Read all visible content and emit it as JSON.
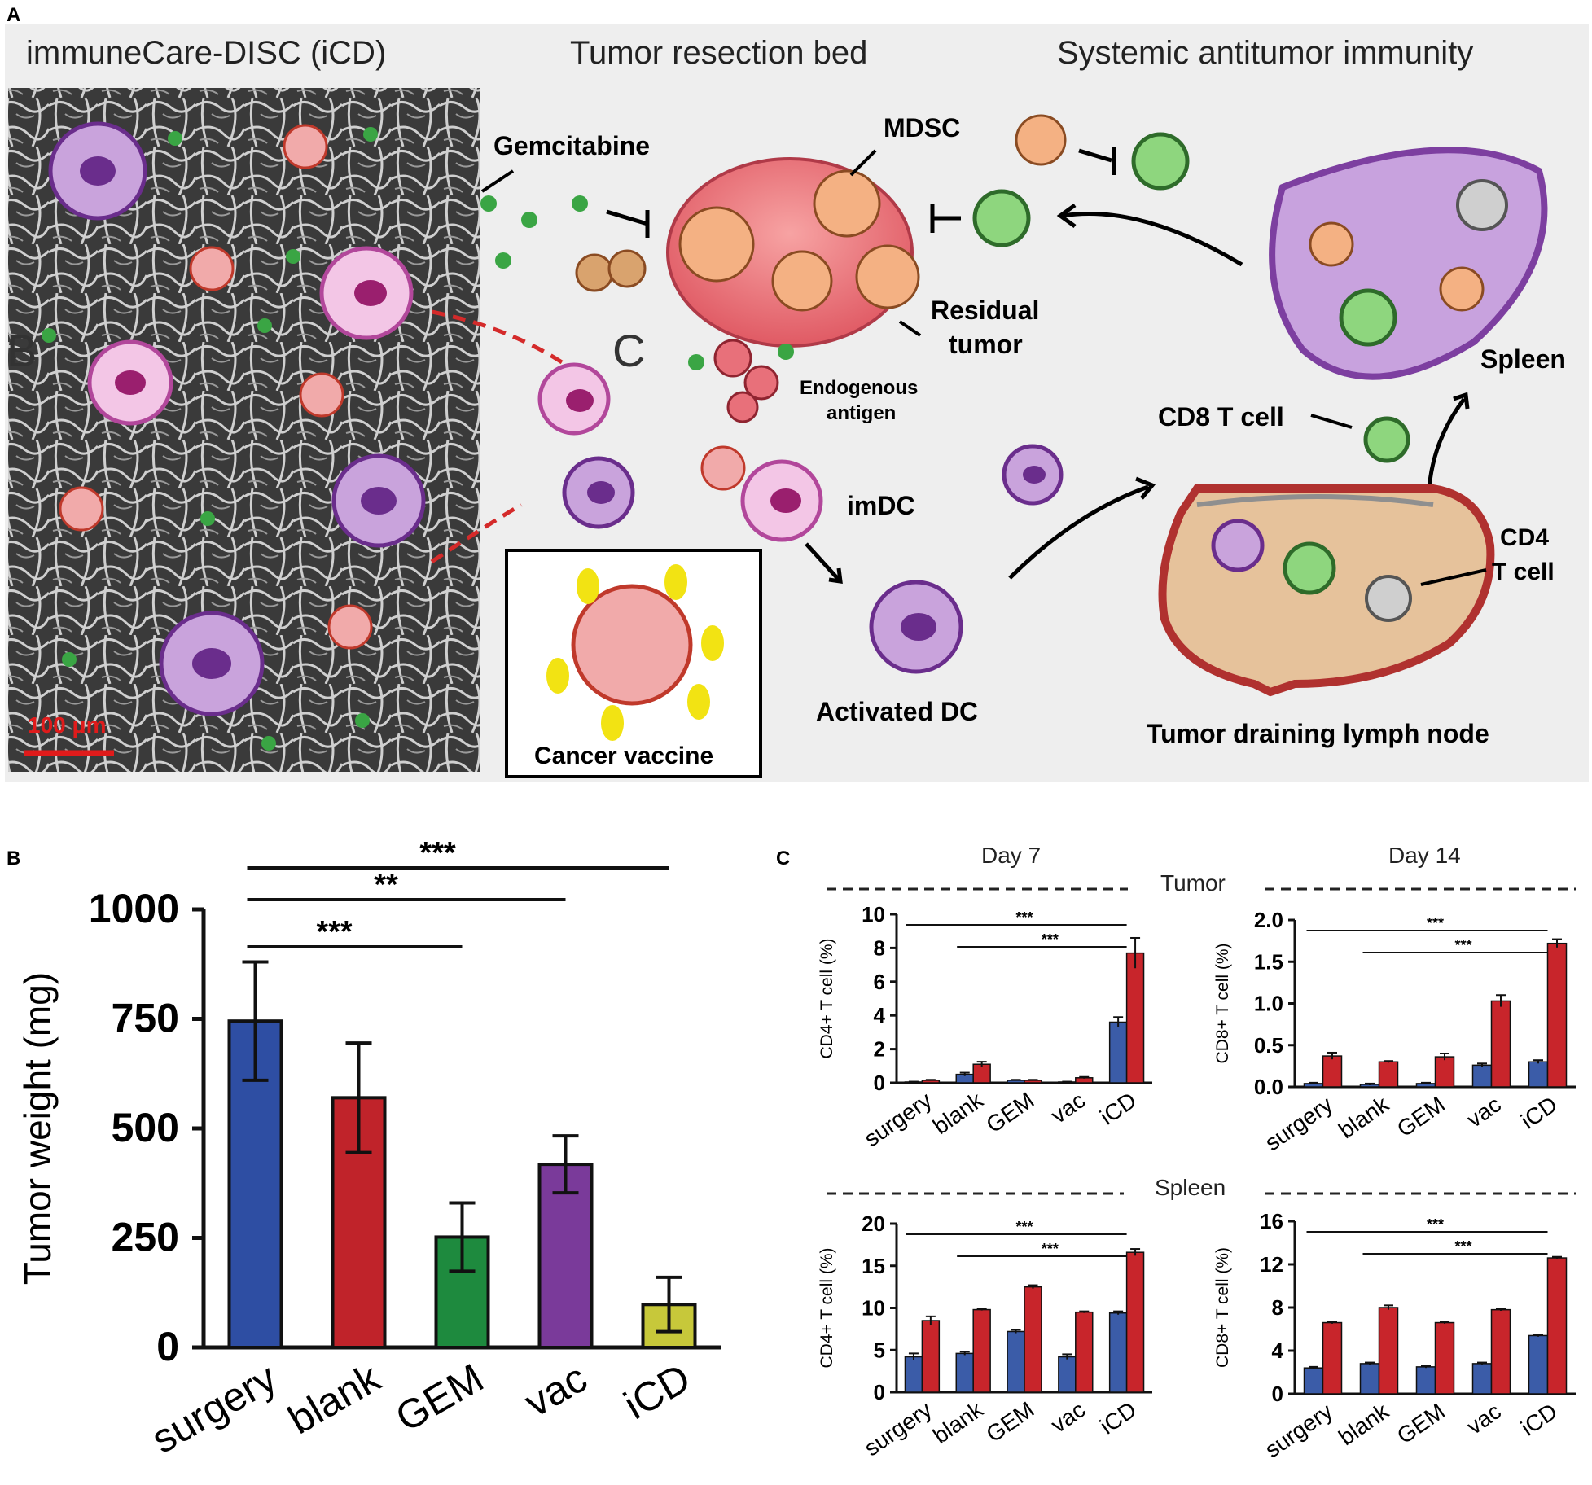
{
  "panel_a": {
    "letter": "A",
    "headers": [
      "immuneCare-DISC (iCD)",
      "Tumor resection bed",
      "Systemic antitumor immunity"
    ],
    "scale_bar": "100 μm",
    "stray_letters": [
      "B",
      "C"
    ],
    "labels": {
      "gemcitabine": "Gemcitabine",
      "mdsc": "MDSC",
      "residual_tumor_1": "Residual",
      "residual_tumor_2": "tumor",
      "endogenous_antigen_1": "Endogenous",
      "endogenous_antigen_2": "antigen",
      "imdc": "imDC",
      "activated_dc": "Activated DC",
      "cancer_vaccine": "Cancer vaccine",
      "spleen": "Spleen",
      "cd8_t_cell": "CD8 T cell",
      "cd4_1": "CD4",
      "cd4_2": "T cell",
      "lymph_node": "Tumor draining lymph node"
    },
    "colors": {
      "dc_purple": "#8e44ad",
      "imdc_pink": "#e8a0d8",
      "t_cell_green": "#7ccf6a",
      "tumor_red": "#e8707a",
      "mdsc_orange": "#f4b183",
      "lymph_node": "#e8c39e",
      "spleen": "#b98ad0",
      "arrow_red": "#d42a2a"
    }
  },
  "panel_b": {
    "letter": "B",
    "chart_data": {
      "type": "bar",
      "title": "",
      "xlabel": "",
      "ylabel": "Tumor weight (mg)",
      "ylim": [
        0,
        1000
      ],
      "yticks": [
        0,
        250,
        500,
        750,
        1000
      ],
      "categories": [
        "surgery",
        "blank",
        "GEM",
        "vac",
        "iCD"
      ],
      "values": [
        745,
        570,
        252,
        418,
        98
      ],
      "errors": [
        135,
        125,
        78,
        65,
        62
      ],
      "colors": [
        "#2e4ea3",
        "#c0232a",
        "#1e8a3e",
        "#7a3a9a",
        "#c7c83a"
      ],
      "significance": [
        {
          "from": "surgery",
          "to": "GEM",
          "label": "***"
        },
        {
          "from": "surgery",
          "to": "vac",
          "label": "**"
        },
        {
          "from": "surgery",
          "to": "iCD",
          "label": "***"
        }
      ]
    }
  },
  "panel_c": {
    "letter": "C",
    "col_titles": [
      "Day 7",
      "Day 14"
    ],
    "row_titles": [
      "Tumor",
      "Spleen"
    ],
    "chart_data": [
      {
        "type": "bar",
        "panel": "Day 7 Tumor",
        "ylabel": "CD4+ T cell (%)",
        "ylim": [
          0,
          10
        ],
        "yticks": [
          0,
          2,
          4,
          6,
          8,
          10
        ],
        "categories": [
          "surgery",
          "blank",
          "GEM",
          "vac",
          "iCD"
        ],
        "series": [
          {
            "values": [
              0.05,
              0.5,
              0.15,
              0.05,
              3.6
            ],
            "errors": [
              0.02,
              0.1,
              0.03,
              0.02,
              0.3
            ],
            "color": "#3b5ca8"
          },
          {
            "values": [
              0.15,
              1.1,
              0.15,
              0.3,
              7.7
            ],
            "errors": [
              0.03,
              0.15,
              0.03,
              0.05,
              0.9
            ],
            "color": "#c8252b"
          }
        ],
        "significance": [
          {
            "from": "surgery",
            "to": "iCD",
            "label": "***"
          },
          {
            "from": "blank",
            "to": "iCD",
            "label": "***"
          }
        ]
      },
      {
        "type": "bar",
        "panel": "Day 14 Tumor",
        "ylabel": "CD8+ T cell (%)",
        "ylim": [
          0,
          2.0
        ],
        "yticks": [
          0.0,
          0.5,
          1.0,
          1.5,
          2.0
        ],
        "categories": [
          "surgery",
          "blank",
          "GEM",
          "vac",
          "iCD"
        ],
        "series": [
          {
            "values": [
              0.04,
              0.03,
              0.04,
              0.26,
              0.3
            ],
            "errors": [
              0.01,
              0.01,
              0.01,
              0.02,
              0.02
            ],
            "color": "#3b5ca8"
          },
          {
            "values": [
              0.37,
              0.3,
              0.36,
              1.03,
              1.72
            ],
            "errors": [
              0.04,
              0.01,
              0.04,
              0.07,
              0.05
            ],
            "color": "#c8252b"
          }
        ],
        "significance": [
          {
            "from": "surgery",
            "to": "iCD",
            "label": "***"
          },
          {
            "from": "blank",
            "to": "iCD",
            "label": "***"
          }
        ]
      },
      {
        "type": "bar",
        "panel": "Day 7 Spleen",
        "ylabel": "CD4+ T cell (%)",
        "ylim": [
          0,
          20
        ],
        "yticks": [
          0,
          5,
          10,
          15,
          20
        ],
        "categories": [
          "surgery",
          "blank",
          "GEM",
          "vac",
          "iCD"
        ],
        "series": [
          {
            "values": [
              4.2,
              4.6,
              7.2,
              4.2,
              9.4
            ],
            "errors": [
              0.4,
              0.2,
              0.2,
              0.3,
              0.2
            ],
            "color": "#3b5ca8"
          },
          {
            "values": [
              8.5,
              9.8,
              12.5,
              9.5,
              16.6
            ],
            "errors": [
              0.5,
              0.1,
              0.2,
              0.1,
              0.4
            ],
            "color": "#c8252b"
          }
        ],
        "significance": [
          {
            "from": "surgery",
            "to": "iCD",
            "label": "***"
          },
          {
            "from": "blank",
            "to": "iCD",
            "label": "***"
          }
        ]
      },
      {
        "type": "bar",
        "panel": "Day 14 Spleen",
        "ylabel": "CD8+ T cell (%)",
        "ylim": [
          0,
          16
        ],
        "yticks": [
          0,
          4,
          8,
          12,
          16
        ],
        "categories": [
          "surgery",
          "blank",
          "GEM",
          "vac",
          "iCD"
        ],
        "series": [
          {
            "values": [
              2.4,
              2.8,
              2.5,
              2.8,
              5.4
            ],
            "errors": [
              0.1,
              0.1,
              0.1,
              0.1,
              0.1
            ],
            "color": "#3b5ca8"
          },
          {
            "values": [
              6.6,
              8.0,
              6.6,
              7.8,
              12.6
            ],
            "errors": [
              0.1,
              0.2,
              0.1,
              0.1,
              0.1
            ],
            "color": "#c8252b"
          }
        ],
        "significance": [
          {
            "from": "surgery",
            "to": "iCD",
            "label": "***"
          },
          {
            "from": "blank",
            "to": "iCD",
            "label": "***"
          }
        ]
      }
    ]
  }
}
